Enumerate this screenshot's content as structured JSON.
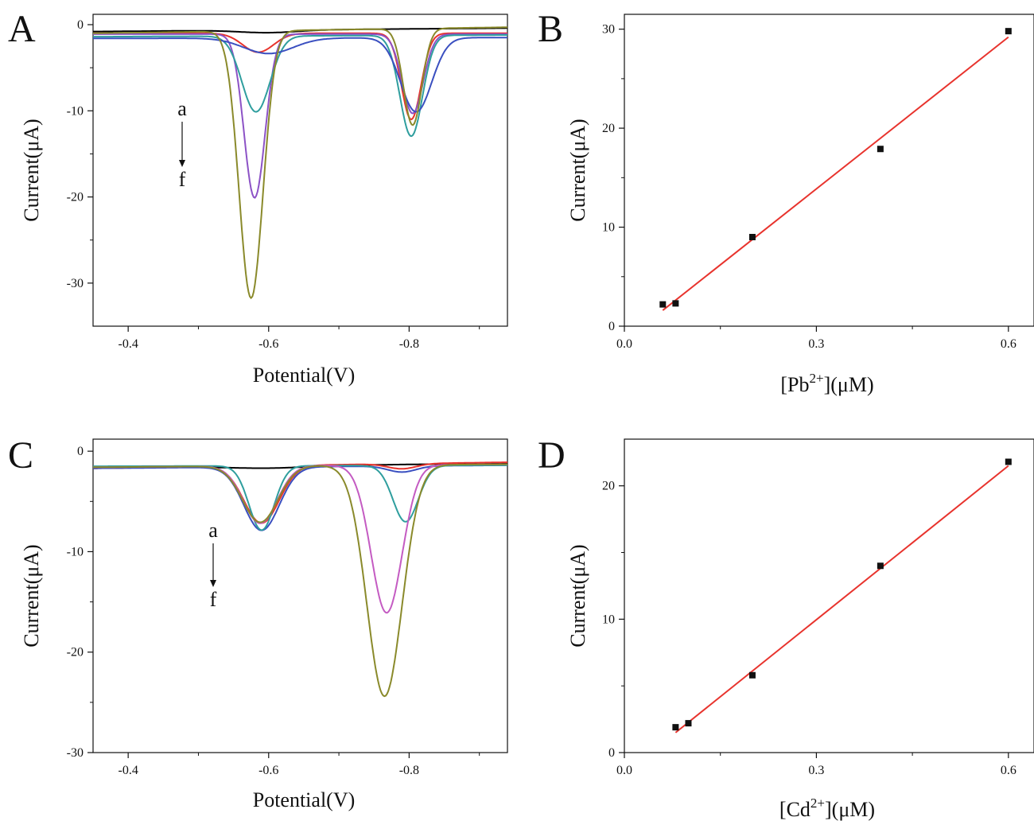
{
  "chart_data": [
    {
      "panel": "A",
      "type": "line",
      "xlabel": "Potential(V)",
      "ylabel": "Current(μA)",
      "xlim": [
        -0.35,
        -0.94
      ],
      "ylim": [
        -35,
        1.2
      ],
      "xticks": [
        -0.4,
        -0.6,
        -0.8
      ],
      "yticks": [
        0,
        -10,
        -20,
        -30
      ],
      "annotation": {
        "from": "a",
        "to": "f"
      },
      "baseline_start": [
        -0.8,
        -1.0,
        -1.1,
        -1.4,
        -1.6,
        -1.0
      ],
      "baseline_end": [
        -0.4,
        -1.0,
        -1.1,
        -1.2,
        -1.5,
        -0.3
      ],
      "series": [
        {
          "color": "#000000",
          "values": [
            -0.8,
            -0.4
          ],
          "peaks": [
            {
              "x": -0.6,
              "depth": 0.3,
              "sigma": 0.04
            }
          ]
        },
        {
          "color": "#e8332d",
          "values": [
            -1.0,
            -1.0
          ],
          "peaks": [
            {
              "x": -0.585,
              "depth": 2.2,
              "sigma": 0.022
            },
            {
              "x": -0.803,
              "depth": 10.0,
              "sigma": 0.014
            }
          ]
        },
        {
          "color": "#8c52c6",
          "values": [
            -1.1,
            -1.1
          ],
          "peaks": [
            {
              "x": -0.58,
              "depth": 19.0,
              "sigma": 0.015
            },
            {
              "x": -0.805,
              "depth": 9.2,
              "sigma": 0.015
            }
          ]
        },
        {
          "color": "#2f9e9e",
          "values": [
            -1.4,
            -1.2
          ],
          "peaks": [
            {
              "x": -0.582,
              "depth": 8.8,
              "sigma": 0.02
            },
            {
              "x": -0.803,
              "depth": 11.7,
              "sigma": 0.016
            }
          ]
        },
        {
          "color": "#3a4fc0",
          "values": [
            -1.6,
            -1.5
          ],
          "peaks": [
            {
              "x": -0.6,
              "depth": 1.8,
              "sigma": 0.035
            },
            {
              "x": -0.81,
              "depth": 8.6,
              "sigma": 0.022
            }
          ]
        },
        {
          "color": "#8a8a2b",
          "values": [
            -1.0,
            -0.3
          ],
          "peaks": [
            {
              "x": -0.575,
              "depth": 31.0,
              "sigma": 0.017
            },
            {
              "x": -0.805,
              "depth": 11.2,
              "sigma": 0.013
            }
          ]
        }
      ]
    },
    {
      "panel": "B",
      "type": "scatter",
      "xlabel": "[Pb2+](μM)",
      "ylabel": "Current(μA)",
      "xlim": [
        0.0,
        0.64
      ],
      "ylim": [
        0,
        31.5
      ],
      "xticks": [
        0.0,
        0.3,
        0.6
      ],
      "yticks": [
        0,
        10,
        20,
        30
      ],
      "x": [
        0.06,
        0.08,
        0.2,
        0.4,
        0.6
      ],
      "y": [
        2.2,
        2.3,
        9.0,
        17.9,
        29.8
      ],
      "fit": {
        "x": [
          0.06,
          0.6
        ],
        "y": [
          1.6,
          29.2
        ],
        "color": "#e8332d"
      }
    },
    {
      "panel": "C",
      "type": "line",
      "xlabel": "Potential(V)",
      "ylabel": "Current(μA)",
      "xlim": [
        -0.35,
        -0.94
      ],
      "ylim": [
        -30,
        1.2
      ],
      "xticks": [
        -0.4,
        -0.6,
        -0.8
      ],
      "yticks": [
        0,
        -10,
        -20,
        -30
      ],
      "annotation": {
        "from": "a",
        "to": "f"
      },
      "series": [
        {
          "color": "#000000",
          "values": [
            -1.7,
            -1.2
          ],
          "peaks": [
            {
              "x": -0.6,
              "depth": 0.2,
              "sigma": 0.05
            }
          ]
        },
        {
          "color": "#e8332d",
          "values": [
            -1.7,
            -1.1
          ],
          "peaks": [
            {
              "x": -0.59,
              "depth": 5.7,
              "sigma": 0.025
            },
            {
              "x": -0.79,
              "depth": 0.5,
              "sigma": 0.02
            }
          ]
        },
        {
          "color": "#3a4fc0",
          "values": [
            -1.7,
            -1.4
          ],
          "peaks": [
            {
              "x": -0.59,
              "depth": 6.3,
              "sigma": 0.025
            },
            {
              "x": -0.79,
              "depth": 0.6,
              "sigma": 0.02
            }
          ]
        },
        {
          "color": "#2f9e9e",
          "values": [
            -1.5,
            -1.4
          ],
          "peaks": [
            {
              "x": -0.59,
              "depth": 6.4,
              "sigma": 0.018
            },
            {
              "x": -0.795,
              "depth": 5.6,
              "sigma": 0.018
            }
          ]
        },
        {
          "color": "#c45bc2",
          "values": [
            -1.6,
            -1.3
          ],
          "peaks": [
            {
              "x": -0.588,
              "depth": 5.7,
              "sigma": 0.024
            },
            {
              "x": -0.768,
              "depth": 14.7,
              "sigma": 0.022
            }
          ]
        },
        {
          "color": "#8a8a2b",
          "values": [
            -1.6,
            -1.3
          ],
          "peaks": [
            {
              "x": -0.588,
              "depth": 5.6,
              "sigma": 0.025
            },
            {
              "x": -0.765,
              "depth": 23.0,
              "sigma": 0.025
            }
          ]
        }
      ]
    },
    {
      "panel": "D",
      "type": "scatter",
      "xlabel": "[Cd2+](μM)",
      "ylabel": "Current(μA)",
      "xlim": [
        0.0,
        0.64
      ],
      "ylim": [
        0,
        23.5
      ],
      "xticks": [
        0.0,
        0.3,
        0.6
      ],
      "yticks": [
        0,
        10,
        20
      ],
      "x": [
        0.08,
        0.1,
        0.2,
        0.4,
        0.6
      ],
      "y": [
        1.9,
        2.2,
        5.8,
        14.0,
        21.8
      ],
      "fit": {
        "x": [
          0.08,
          0.6
        ],
        "y": [
          1.5,
          21.5
        ],
        "color": "#e8332d"
      }
    }
  ],
  "labels": {
    "A": "A",
    "B": "B",
    "C": "C",
    "D": "D"
  }
}
